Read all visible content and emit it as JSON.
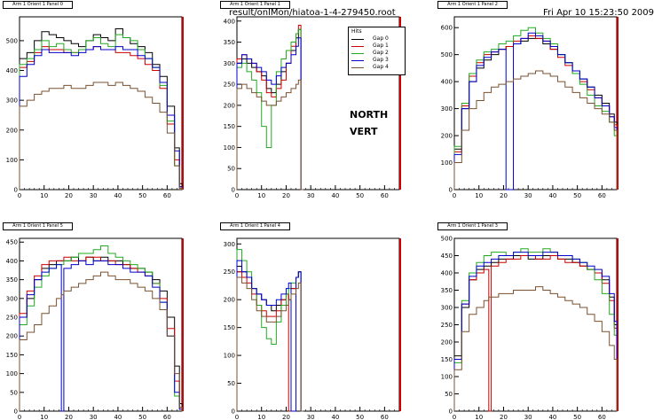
{
  "header": {
    "file": "result/onlMon/hiatoa-1-4-279450.root",
    "date": "Fri Apr 10 15:23:50 2009"
  },
  "annotations": {
    "north": "NORTH",
    "vert": "VERT"
  },
  "legend": {
    "title": "Hits",
    "entries": [
      {
        "label": "Gap 0",
        "color": "#000000"
      },
      {
        "label": "Gap 1",
        "color": "#cc0000"
      },
      {
        "label": "Gap 2",
        "color": "#22aa22"
      },
      {
        "label": "Gap 3",
        "color": "#0000cc"
      },
      {
        "label": "Gap 4",
        "color": "#7a5230"
      }
    ]
  },
  "chart_data": [
    {
      "type": "line",
      "title": "Arm 1 Orient 1 Panel 0",
      "xlabel": "",
      "ylabel": "",
      "xlim": [
        0,
        66
      ],
      "ylim": [
        0,
        580
      ],
      "xticks": [
        0,
        10,
        20,
        30,
        40,
        50,
        60
      ],
      "yticks": [
        0,
        100,
        200,
        300,
        400,
        500
      ],
      "x": [
        0,
        3,
        6,
        9,
        12,
        15,
        18,
        21,
        24,
        27,
        30,
        33,
        36,
        39,
        42,
        45,
        48,
        51,
        54,
        57,
        60,
        63,
        65
      ],
      "series": [
        {
          "name": "Gap 0",
          "values": [
            440,
            460,
            500,
            530,
            520,
            510,
            500,
            490,
            480,
            500,
            520,
            510,
            500,
            540,
            510,
            490,
            480,
            460,
            420,
            380,
            280,
            140,
            20
          ]
        },
        {
          "name": "Gap 1",
          "values": [
            410,
            430,
            460,
            480,
            470,
            470,
            460,
            460,
            470,
            470,
            480,
            470,
            470,
            460,
            460,
            450,
            440,
            420,
            400,
            340,
            220,
            100,
            10
          ]
        },
        {
          "name": "Gap 2",
          "values": [
            420,
            440,
            470,
            500,
            480,
            490,
            470,
            460,
            470,
            500,
            510,
            490,
            480,
            520,
            510,
            500,
            470,
            440,
            410,
            350,
            230,
            80,
            5
          ]
        },
        {
          "name": "Gap 3",
          "values": [
            380,
            420,
            450,
            470,
            460,
            460,
            460,
            450,
            460,
            470,
            480,
            470,
            470,
            480,
            470,
            470,
            450,
            440,
            410,
            360,
            250,
            130,
            10
          ]
        },
        {
          "name": "Gap 4",
          "values": [
            280,
            300,
            320,
            330,
            340,
            340,
            350,
            340,
            340,
            350,
            360,
            360,
            350,
            360,
            350,
            340,
            330,
            310,
            290,
            260,
            190,
            80,
            5
          ]
        }
      ]
    },
    {
      "type": "line",
      "title": "Arm 1 Orient 1 Panel 1",
      "xlabel": "",
      "ylabel": "",
      "xlim": [
        0,
        66
      ],
      "ylim": [
        0,
        410
      ],
      "xticks": [
        0,
        10,
        20,
        30,
        40,
        50,
        60
      ],
      "yticks": [
        0,
        50,
        100,
        150,
        200,
        250,
        300,
        350,
        400
      ],
      "x": [
        0,
        2,
        4,
        6,
        8,
        10,
        12,
        14,
        16,
        18,
        20,
        22,
        24,
        25,
        26
      ],
      "series": [
        {
          "name": "Gap 0",
          "values": [
            300,
            310,
            300,
            290,
            280,
            270,
            240,
            230,
            250,
            280,
            300,
            330,
            360,
            380,
            0
          ]
        },
        {
          "name": "Gap 1",
          "values": [
            310,
            320,
            310,
            300,
            280,
            260,
            230,
            220,
            240,
            260,
            300,
            340,
            370,
            390,
            0
          ]
        },
        {
          "name": "Gap 2",
          "values": [
            290,
            300,
            280,
            260,
            230,
            150,
            100,
            200,
            280,
            310,
            330,
            350,
            370,
            380,
            0
          ]
        },
        {
          "name": "Gap 3",
          "values": [
            300,
            320,
            310,
            300,
            290,
            280,
            260,
            250,
            270,
            290,
            300,
            320,
            340,
            360,
            0
          ]
        },
        {
          "name": "Gap 4",
          "values": [
            240,
            250,
            240,
            230,
            220,
            210,
            200,
            200,
            210,
            220,
            230,
            240,
            250,
            260,
            0
          ]
        }
      ]
    },
    {
      "type": "line",
      "title": "Arm 1 Orient 1 Panel 2",
      "xlabel": "",
      "ylabel": "",
      "xlim": [
        0,
        66
      ],
      "ylim": [
        0,
        640
      ],
      "xticks": [
        0,
        10,
        20,
        30,
        40,
        50,
        60
      ],
      "yticks": [
        0,
        100,
        200,
        300,
        400,
        500,
        600
      ],
      "x": [
        0,
        3,
        6,
        9,
        12,
        15,
        18,
        21,
        24,
        27,
        30,
        33,
        36,
        39,
        42,
        45,
        48,
        51,
        54,
        57,
        60,
        63,
        65
      ],
      "series": [
        {
          "name": "Gap 0",
          "values": [
            150,
            300,
            400,
            450,
            480,
            500,
            520,
            530,
            540,
            550,
            560,
            560,
            540,
            520,
            500,
            470,
            440,
            410,
            380,
            350,
            320,
            280,
            250
          ]
        },
        {
          "name": "Gap 1",
          "values": [
            140,
            310,
            420,
            470,
            500,
            510,
            520,
            530,
            550,
            560,
            570,
            560,
            550,
            520,
            490,
            460,
            430,
            400,
            370,
            340,
            310,
            270,
            240
          ]
        },
        {
          "name": "Gap 2",
          "values": [
            160,
            320,
            430,
            480,
            510,
            520,
            540,
            550,
            570,
            590,
            600,
            580,
            560,
            540,
            500,
            470,
            430,
            390,
            350,
            310,
            290,
            250,
            200
          ]
        },
        {
          "name": "Gap 3",
          "values": [
            130,
            300,
            400,
            460,
            490,
            510,
            520,
            0,
            540,
            560,
            580,
            570,
            550,
            530,
            500,
            470,
            440,
            410,
            380,
            340,
            310,
            270,
            230
          ]
        },
        {
          "name": "Gap 4",
          "values": [
            100,
            220,
            300,
            330,
            360,
            380,
            390,
            400,
            410,
            420,
            430,
            440,
            430,
            420,
            400,
            380,
            360,
            340,
            320,
            300,
            280,
            250,
            220
          ]
        }
      ]
    },
    {
      "type": "line",
      "title": "Arm 1 Orient 1 Panel 5",
      "xlabel": "",
      "ylabel": "",
      "xlim": [
        0,
        66
      ],
      "ylim": [
        0,
        460
      ],
      "xticks": [
        0,
        10,
        20,
        30,
        40,
        50,
        60
      ],
      "yticks": [
        0,
        50,
        100,
        150,
        200,
        250,
        300,
        350,
        400,
        450
      ],
      "x": [
        0,
        3,
        6,
        9,
        12,
        15,
        17,
        18,
        21,
        24,
        27,
        30,
        33,
        36,
        39,
        42,
        45,
        48,
        51,
        54,
        57,
        60,
        63,
        65
      ],
      "series": [
        {
          "name": "Gap 0",
          "values": [
            250,
            300,
            350,
            380,
            390,
            400,
            400,
            400,
            410,
            400,
            410,
            400,
            410,
            400,
            400,
            390,
            380,
            380,
            370,
            350,
            320,
            250,
            120,
            20
          ]
        },
        {
          "name": "Gap 1",
          "values": [
            260,
            320,
            360,
            390,
            400,
            400,
            400,
            410,
            400,
            400,
            410,
            410,
            400,
            400,
            390,
            390,
            380,
            370,
            360,
            340,
            300,
            220,
            80,
            10
          ]
        },
        {
          "name": "Gap 2",
          "values": [
            230,
            280,
            330,
            360,
            380,
            390,
            390,
            400,
            410,
            420,
            420,
            430,
            440,
            420,
            410,
            400,
            390,
            380,
            370,
            340,
            290,
            200,
            40,
            5
          ]
        },
        {
          "name": "Gap 3",
          "values": [
            250,
            310,
            350,
            370,
            380,
            390,
            0,
            380,
            390,
            400,
            390,
            400,
            400,
            390,
            390,
            380,
            370,
            370,
            360,
            330,
            290,
            200,
            50,
            5
          ]
        },
        {
          "name": "Gap 4",
          "values": [
            190,
            210,
            230,
            260,
            280,
            300,
            310,
            320,
            330,
            340,
            350,
            360,
            370,
            360,
            350,
            350,
            340,
            330,
            320,
            300,
            270,
            200,
            100,
            10
          ]
        }
      ]
    },
    {
      "type": "line",
      "title": "Arm 1 Orient 1 Panel 4",
      "xlabel": "",
      "ylabel": "",
      "xlim": [
        0,
        66
      ],
      "ylim": [
        0,
        310
      ],
      "xticks": [
        0,
        10,
        20,
        30,
        40,
        50,
        60
      ],
      "yticks": [
        0,
        50,
        100,
        150,
        200,
        250,
        300
      ],
      "x": [
        0,
        2,
        4,
        6,
        8,
        10,
        12,
        14,
        16,
        18,
        20,
        21,
        22,
        24,
        25,
        26
      ],
      "series": [
        {
          "name": "Gap 0",
          "values": [
            260,
            250,
            240,
            220,
            210,
            200,
            190,
            180,
            190,
            200,
            210,
            200,
            220,
            240,
            250,
            0
          ]
        },
        {
          "name": "Gap 1",
          "values": [
            250,
            240,
            230,
            210,
            190,
            180,
            170,
            170,
            180,
            200,
            210,
            0,
            220,
            240,
            250,
            0
          ]
        },
        {
          "name": "Gap 2",
          "values": [
            290,
            270,
            250,
            220,
            190,
            150,
            130,
            120,
            160,
            190,
            210,
            220,
            230,
            240,
            250,
            0
          ]
        },
        {
          "name": "Gap 3",
          "values": [
            270,
            250,
            240,
            220,
            210,
            200,
            190,
            190,
            200,
            210,
            220,
            230,
            0,
            240,
            250,
            0
          ]
        },
        {
          "name": "Gap 4",
          "values": [
            240,
            230,
            220,
            200,
            180,
            170,
            160,
            160,
            170,
            180,
            190,
            200,
            210,
            220,
            230,
            0
          ]
        }
      ]
    },
    {
      "type": "line",
      "title": "Arm 1 Orient 1 Panel 3",
      "xlabel": "",
      "ylabel": "",
      "xlim": [
        0,
        66
      ],
      "ylim": [
        0,
        500
      ],
      "xticks": [
        0,
        10,
        20,
        30,
        40,
        50,
        60
      ],
      "yticks": [
        0,
        50,
        100,
        150,
        200,
        250,
        300,
        350,
        400,
        450,
        500
      ],
      "x": [
        0,
        3,
        6,
        9,
        12,
        14,
        15,
        18,
        21,
        24,
        27,
        30,
        33,
        36,
        39,
        42,
        45,
        48,
        51,
        54,
        57,
        60,
        63,
        65
      ],
      "series": [
        {
          "name": "Gap 0",
          "values": [
            160,
            300,
            380,
            410,
            420,
            420,
            430,
            440,
            440,
            450,
            450,
            440,
            440,
            450,
            450,
            440,
            440,
            430,
            420,
            410,
            400,
            380,
            330,
            250
          ]
        },
        {
          "name": "Gap 1",
          "values": [
            150,
            310,
            380,
            400,
            410,
            0,
            420,
            430,
            440,
            440,
            450,
            450,
            440,
            440,
            450,
            440,
            430,
            430,
            420,
            410,
            400,
            370,
            320,
            240
          ]
        },
        {
          "name": "Gap 2",
          "values": [
            140,
            320,
            400,
            430,
            450,
            450,
            460,
            460,
            450,
            460,
            470,
            460,
            460,
            470,
            460,
            450,
            450,
            440,
            430,
            410,
            380,
            340,
            280,
            220
          ]
        },
        {
          "name": "Gap 3",
          "values": [
            150,
            310,
            390,
            420,
            430,
            430,
            440,
            450,
            450,
            460,
            460,
            450,
            450,
            460,
            460,
            450,
            450,
            440,
            430,
            420,
            410,
            390,
            340,
            260
          ]
        },
        {
          "name": "Gap 4",
          "values": [
            120,
            230,
            280,
            300,
            320,
            330,
            330,
            340,
            340,
            350,
            350,
            350,
            360,
            350,
            340,
            330,
            320,
            310,
            300,
            280,
            260,
            230,
            190,
            150
          ]
        }
      ]
    }
  ]
}
